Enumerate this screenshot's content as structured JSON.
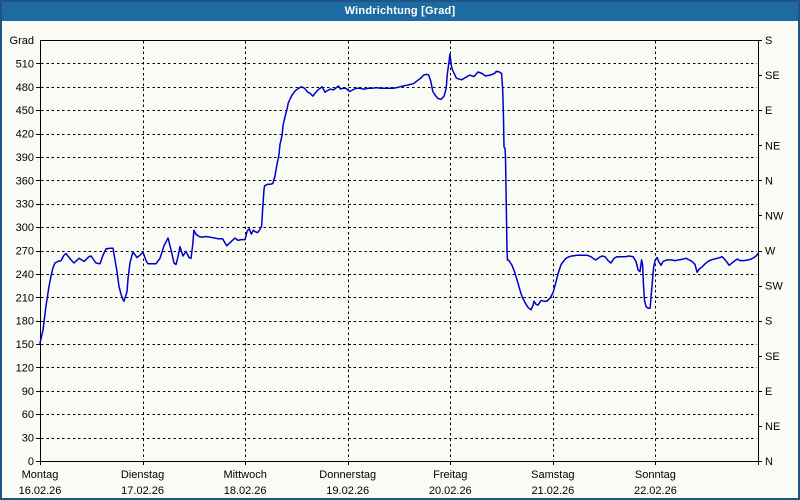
{
  "title": "Windrichtung [Grad]",
  "colors": {
    "titlebar_bg": "#1e6ba4",
    "titlebar_text": "#ffffff",
    "window_border": "#1c5586",
    "background": "#fbfbf6",
    "frame": "#000000",
    "grid": "#000000",
    "line": "#0000c8",
    "label": "#000000"
  },
  "chart_data": {
    "type": "line",
    "title": "Windrichtung [Grad]",
    "grid": true,
    "legend_position": "none",
    "y_axis": {
      "label": "Grad",
      "min": 0,
      "max": 540,
      "tick_step": 30,
      "tick_labels": [
        "0",
        "30",
        "60",
        "90",
        "120",
        "150",
        "180",
        "210",
        "240",
        "270",
        "300",
        "330",
        "360",
        "390",
        "420",
        "450",
        "480",
        "510"
      ]
    },
    "y_axis_right": {
      "ticks": [
        {
          "value": 540,
          "label": "S"
        },
        {
          "value": 495,
          "label": "SE"
        },
        {
          "value": 450,
          "label": "E"
        },
        {
          "value": 405,
          "label": "NE"
        },
        {
          "value": 360,
          "label": "N"
        },
        {
          "value": 315,
          "label": "NW"
        },
        {
          "value": 270,
          "label": "W"
        },
        {
          "value": 225,
          "label": "SW"
        },
        {
          "value": 180,
          "label": "S"
        },
        {
          "value": 135,
          "label": "SE"
        },
        {
          "value": 90,
          "label": "E"
        },
        {
          "value": 45,
          "label": "NE"
        },
        {
          "value": 0,
          "label": "N"
        }
      ]
    },
    "x_axis": {
      "unit": "days",
      "min": 0,
      "max": 7,
      "days": [
        {
          "name": "Montag",
          "date": "16.02.26"
        },
        {
          "name": "Dienstag",
          "date": "17.02.26"
        },
        {
          "name": "Mittwoch",
          "date": "18.02.26"
        },
        {
          "name": "Donnerstag",
          "date": "19.02.26"
        },
        {
          "name": "Freitag",
          "date": "20.02.26"
        },
        {
          "name": "Samstag",
          "date": "21.02.26"
        },
        {
          "name": "Sonntag",
          "date": "22.02.26"
        }
      ]
    },
    "series": [
      {
        "name": "Windrichtung",
        "unit": "Grad",
        "points": [
          [
            0,
            151
          ],
          [
            0.029,
            168
          ],
          [
            0.058,
            198
          ],
          [
            0.088,
            224
          ],
          [
            0.107,
            237
          ],
          [
            0.127,
            248
          ],
          [
            0.146,
            254
          ],
          [
            0.175,
            256
          ],
          [
            0.205,
            257
          ],
          [
            0.234,
            264
          ],
          [
            0.253,
            266
          ],
          [
            0.302,
            258
          ],
          [
            0.331,
            254
          ],
          [
            0.38,
            260
          ],
          [
            0.429,
            256
          ],
          [
            0.478,
            262
          ],
          [
            0.497,
            263
          ],
          [
            0.546,
            254
          ],
          [
            0.585,
            253
          ],
          [
            0.614,
            264
          ],
          [
            0.643,
            272
          ],
          [
            0.682,
            273
          ],
          [
            0.712,
            273
          ],
          [
            0.731,
            258
          ],
          [
            0.751,
            243
          ],
          [
            0.77,
            224
          ],
          [
            0.79,
            214
          ],
          [
            0.809,
            207
          ],
          [
            0.819,
            205
          ],
          [
            0.848,
            217
          ],
          [
            0.858,
            234
          ],
          [
            0.877,
            254
          ],
          [
            0.897,
            264
          ],
          [
            0.907,
            268
          ],
          [
            0.946,
            261
          ],
          [
            0.975,
            264
          ],
          [
            1.004,
            268
          ],
          [
            1.033,
            257
          ],
          [
            1.053,
            253
          ],
          [
            1.092,
            253
          ],
          [
            1.131,
            253
          ],
          [
            1.17,
            260
          ],
          [
            1.209,
            276
          ],
          [
            1.248,
            286
          ],
          [
            1.277,
            271
          ],
          [
            1.306,
            254
          ],
          [
            1.326,
            252
          ],
          [
            1.345,
            262
          ],
          [
            1.365,
            275
          ],
          [
            1.394,
            263
          ],
          [
            1.423,
            269
          ],
          [
            1.453,
            261
          ],
          [
            1.472,
            260
          ],
          [
            1.49,
            278
          ],
          [
            1.5,
            296
          ],
          [
            1.52,
            291
          ],
          [
            1.55,
            288
          ],
          [
            1.58,
            287
          ],
          [
            1.62,
            288
          ],
          [
            1.66,
            287
          ],
          [
            1.7,
            286
          ],
          [
            1.74,
            285
          ],
          [
            1.78,
            285
          ],
          [
            1.82,
            276
          ],
          [
            1.86,
            281
          ],
          [
            1.9,
            286
          ],
          [
            1.93,
            283
          ],
          [
            1.96,
            284
          ],
          [
            2.0,
            284
          ],
          [
            2.02,
            295
          ],
          [
            2.04,
            298
          ],
          [
            2.06,
            291
          ],
          [
            2.08,
            296
          ],
          [
            2.1,
            294
          ],
          [
            2.12,
            293
          ],
          [
            2.14,
            296
          ],
          [
            2.16,
            301
          ],
          [
            2.174,
            330
          ],
          [
            2.184,
            348
          ],
          [
            2.19,
            353
          ],
          [
            2.22,
            355
          ],
          [
            2.25,
            355
          ],
          [
            2.27,
            356
          ],
          [
            2.29,
            365
          ],
          [
            2.31,
            380
          ],
          [
            2.33,
            393
          ],
          [
            2.34,
            406
          ],
          [
            2.36,
            418
          ],
          [
            2.37,
            431
          ],
          [
            2.39,
            442
          ],
          [
            2.41,
            452
          ],
          [
            2.42,
            459
          ],
          [
            2.44,
            465
          ],
          [
            2.46,
            470
          ],
          [
            2.49,
            475
          ],
          [
            2.52,
            478
          ],
          [
            2.55,
            480
          ],
          [
            2.58,
            478
          ],
          [
            2.61,
            473
          ],
          [
            2.63,
            472
          ],
          [
            2.66,
            468
          ],
          [
            2.69,
            473
          ],
          [
            2.71,
            476
          ],
          [
            2.75,
            480
          ],
          [
            2.78,
            473
          ],
          [
            2.8,
            475
          ],
          [
            2.83,
            477
          ],
          [
            2.86,
            476
          ],
          [
            2.89,
            479
          ],
          [
            2.91,
            481
          ],
          [
            2.93,
            477
          ],
          [
            2.95,
            478
          ],
          [
            2.98,
            478
          ],
          [
            3.02,
            474
          ],
          [
            3.05,
            476
          ],
          [
            3.08,
            478
          ],
          [
            3.12,
            478
          ],
          [
            3.16,
            477
          ],
          [
            3.2,
            478
          ],
          [
            3.24,
            478
          ],
          [
            3.28,
            479
          ],
          [
            3.32,
            478
          ],
          [
            3.36,
            478
          ],
          [
            3.4,
            478
          ],
          [
            3.44,
            478
          ],
          [
            3.48,
            479
          ],
          [
            3.51,
            480
          ],
          [
            3.54,
            481
          ],
          [
            3.58,
            482
          ],
          [
            3.61,
            483
          ],
          [
            3.64,
            484
          ],
          [
            3.67,
            487
          ],
          [
            3.69,
            489
          ],
          [
            3.72,
            492
          ],
          [
            3.74,
            495
          ],
          [
            3.77,
            496
          ],
          [
            3.79,
            495
          ],
          [
            3.81,
            487
          ],
          [
            3.83,
            474
          ],
          [
            3.86,
            468
          ],
          [
            3.88,
            465
          ],
          [
            3.91,
            464
          ],
          [
            3.94,
            468
          ],
          [
            3.96,
            478
          ],
          [
            3.97,
            495
          ],
          [
            3.99,
            515
          ],
          [
            3.996,
            522
          ],
          [
            4.01,
            508
          ],
          [
            4.02,
            502
          ],
          [
            4.06,
            491
          ],
          [
            4.11,
            489
          ],
          [
            4.15,
            492
          ],
          [
            4.19,
            495
          ],
          [
            4.23,
            493
          ],
          [
            4.27,
            499
          ],
          [
            4.31,
            497
          ],
          [
            4.34,
            494
          ],
          [
            4.39,
            495
          ],
          [
            4.43,
            497
          ],
          [
            4.45,
            500
          ],
          [
            4.48,
            499
          ],
          [
            4.5,
            497
          ],
          [
            4.51,
            478
          ],
          [
            4.514,
            463
          ],
          [
            4.519,
            440
          ],
          [
            4.524,
            403
          ],
          [
            4.533,
            401
          ],
          [
            4.538,
            390
          ],
          [
            4.543,
            350
          ],
          [
            4.548,
            310
          ],
          [
            4.553,
            270
          ],
          [
            4.558,
            258
          ],
          [
            4.572,
            257
          ],
          [
            4.602,
            251
          ],
          [
            4.631,
            241
          ],
          [
            4.66,
            228
          ],
          [
            4.68,
            219
          ],
          [
            4.699,
            211
          ],
          [
            4.729,
            203
          ],
          [
            4.758,
            197
          ],
          [
            4.787,
            194
          ],
          [
            4.807,
            200
          ],
          [
            4.816,
            205
          ],
          [
            4.836,
            201
          ],
          [
            4.855,
            200
          ],
          [
            4.885,
            206
          ],
          [
            4.914,
            205
          ],
          [
            4.943,
            205
          ],
          [
            4.972,
            209
          ],
          [
            5.002,
            216
          ],
          [
            5.031,
            230
          ],
          [
            5.05,
            240
          ],
          [
            5.08,
            252
          ],
          [
            5.109,
            257
          ],
          [
            5.128,
            260
          ],
          [
            5.158,
            262
          ],
          [
            5.187,
            263
          ],
          [
            5.236,
            264
          ],
          [
            5.284,
            264
          ],
          [
            5.333,
            264
          ],
          [
            5.372,
            262
          ],
          [
            5.401,
            259
          ],
          [
            5.421,
            258
          ],
          [
            5.45,
            261
          ],
          [
            5.479,
            263
          ],
          [
            5.509,
            262
          ],
          [
            5.538,
            257
          ],
          [
            5.567,
            254
          ],
          [
            5.596,
            260
          ],
          [
            5.626,
            262
          ],
          [
            5.665,
            262
          ],
          [
            5.704,
            262
          ],
          [
            5.743,
            263
          ],
          [
            5.782,
            262
          ],
          [
            5.811,
            256
          ],
          [
            5.831,
            245
          ],
          [
            5.85,
            243
          ],
          [
            5.865,
            258
          ],
          [
            5.875,
            252
          ],
          [
            5.884,
            225
          ],
          [
            5.894,
            205
          ],
          [
            5.909,
            198
          ],
          [
            5.928,
            196
          ],
          [
            5.948,
            196
          ],
          [
            5.957,
            210
          ],
          [
            5.967,
            225
          ],
          [
            5.982,
            248
          ],
          [
            5.996,
            257
          ],
          [
            6.016,
            261
          ],
          [
            6.035,
            255
          ],
          [
            6.055,
            251
          ],
          [
            6.074,
            256
          ],
          [
            6.113,
            258
          ],
          [
            6.152,
            258
          ],
          [
            6.191,
            257
          ],
          [
            6.23,
            258
          ],
          [
            6.269,
            259
          ],
          [
            6.299,
            260
          ],
          [
            6.328,
            258
          ],
          [
            6.357,
            256
          ],
          [
            6.386,
            252
          ],
          [
            6.406,
            242
          ],
          [
            6.425,
            246
          ],
          [
            6.455,
            249
          ],
          [
            6.484,
            253
          ],
          [
            6.513,
            256
          ],
          [
            6.542,
            258
          ],
          [
            6.572,
            259
          ],
          [
            6.601,
            260
          ],
          [
            6.63,
            261
          ],
          [
            6.65,
            262
          ],
          [
            6.679,
            258
          ],
          [
            6.698,
            255
          ],
          [
            6.718,
            251
          ],
          [
            6.747,
            254
          ],
          [
            6.776,
            257
          ],
          [
            6.796,
            259
          ],
          [
            6.825,
            257
          ],
          [
            6.864,
            257
          ],
          [
            6.903,
            258
          ],
          [
            6.932,
            259
          ],
          [
            6.962,
            261
          ],
          [
            6.981,
            263
          ],
          [
            7.0,
            266
          ]
        ]
      }
    ]
  }
}
